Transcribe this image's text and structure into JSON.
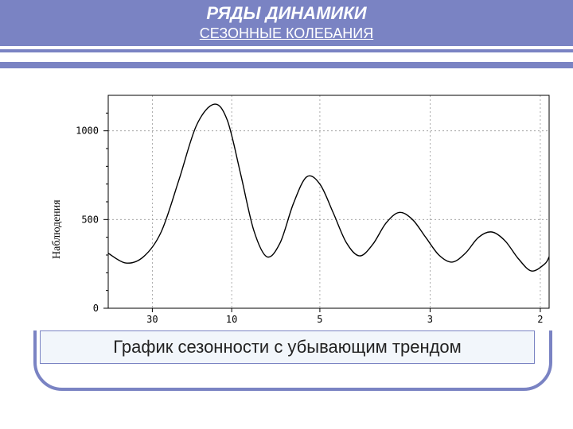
{
  "header": {
    "title": "РЯДЫ ДИНАМИКИ",
    "subtitle": "СЕЗОННЫЕ КОЛЕБАНИЯ",
    "band_color": "#7a83c3",
    "title_color": "#ffffff",
    "title_fontsize": 22,
    "subtitle_fontsize": 18
  },
  "chart": {
    "type": "line",
    "ylabel": "Наблюдения",
    "ylabel_fontsize": 14,
    "xlim": [
      0,
      100
    ],
    "ylim": [
      0,
      1200
    ],
    "yticks": [
      0,
      500,
      1000
    ],
    "ytick_labels": [
      "0",
      "500",
      "1000"
    ],
    "xticks": [
      10,
      28,
      48,
      73,
      98
    ],
    "xtick_labels": [
      "30",
      "10",
      "5",
      "3",
      "2"
    ],
    "grid_x": [
      10,
      28,
      48,
      73,
      98
    ],
    "grid_y": [
      500,
      1000
    ],
    "minor_yticks": [
      100,
      200,
      300,
      400,
      600,
      700,
      800,
      900,
      1100
    ],
    "background_color": "#ffffff",
    "axis_color": "#000000",
    "grid_color": "#999999",
    "line_color": "#000000",
    "line_width": 1.4,
    "tick_fontsize": 12,
    "series": [
      {
        "x": 0,
        "y": 310
      },
      {
        "x": 4,
        "y": 255
      },
      {
        "x": 8,
        "y": 290
      },
      {
        "x": 12,
        "y": 430
      },
      {
        "x": 16,
        "y": 720
      },
      {
        "x": 20,
        "y": 1030
      },
      {
        "x": 24,
        "y": 1150
      },
      {
        "x": 27,
        "y": 1060
      },
      {
        "x": 30,
        "y": 760
      },
      {
        "x": 33,
        "y": 440
      },
      {
        "x": 36,
        "y": 290
      },
      {
        "x": 39,
        "y": 370
      },
      {
        "x": 42,
        "y": 590
      },
      {
        "x": 45,
        "y": 740
      },
      {
        "x": 48,
        "y": 700
      },
      {
        "x": 51,
        "y": 540
      },
      {
        "x": 54,
        "y": 370
      },
      {
        "x": 57,
        "y": 295
      },
      {
        "x": 60,
        "y": 360
      },
      {
        "x": 63,
        "y": 480
      },
      {
        "x": 66,
        "y": 540
      },
      {
        "x": 69,
        "y": 500
      },
      {
        "x": 72,
        "y": 400
      },
      {
        "x": 75,
        "y": 300
      },
      {
        "x": 78,
        "y": 260
      },
      {
        "x": 81,
        "y": 310
      },
      {
        "x": 84,
        "y": 400
      },
      {
        "x": 87,
        "y": 430
      },
      {
        "x": 90,
        "y": 380
      },
      {
        "x": 93,
        "y": 280
      },
      {
        "x": 96,
        "y": 210
      },
      {
        "x": 99,
        "y": 250
      },
      {
        "x": 100,
        "y": 290
      }
    ]
  },
  "caption": {
    "text": "График сезонности с убывающим трендом",
    "box_bg": "#f2f6fb",
    "box_border": "#7a83c3",
    "fontsize": 22,
    "text_color": "#222222"
  },
  "frame": {
    "border_color": "#7a83c3",
    "border_width": 4,
    "border_radius": 36
  }
}
